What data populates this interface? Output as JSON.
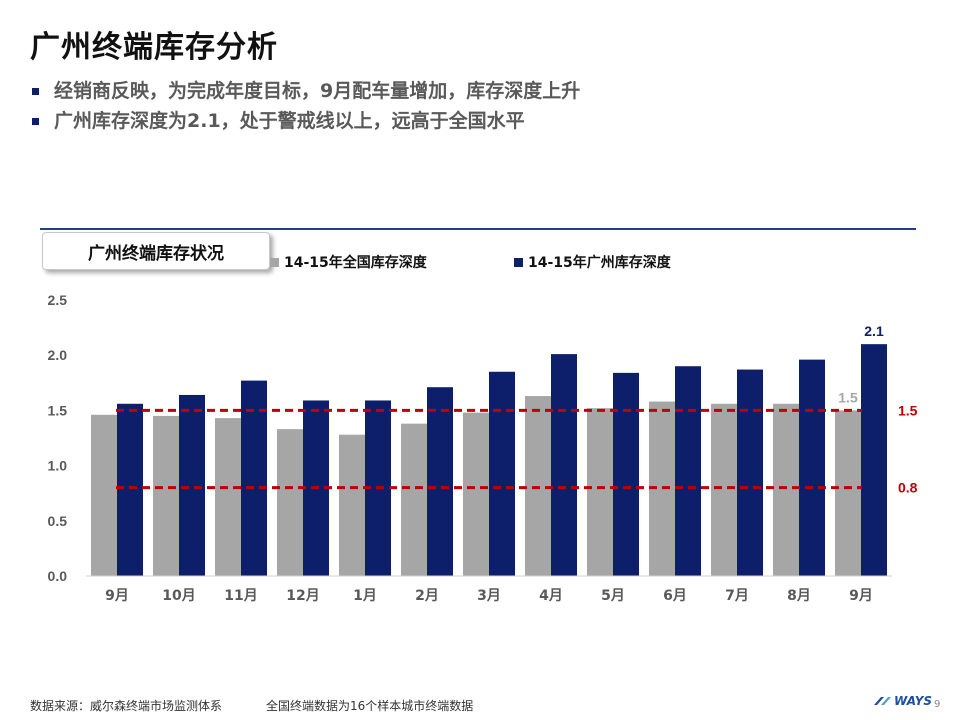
{
  "title": "广州终端库存分析",
  "bullets": [
    "经销商反映，为完成年度目标，9月配车量增加，库存深度上升",
    "广州库存深度为2.1，处于警戒线以上，远高于全国水平"
  ],
  "chart_box_title": "广州终端库存状况",
  "colors": {
    "national": "#a6a6a6",
    "guangzhou": "#0d1f6b",
    "threshold": "#c00000",
    "bullet": "#0d1f6b"
  },
  "chart_data": {
    "type": "bar",
    "title": "广州终端库存状况",
    "categories": [
      "9月",
      "10月",
      "11月",
      "12月",
      "1月",
      "2月",
      "3月",
      "4月",
      "5月",
      "6月",
      "7月",
      "8月",
      "9月"
    ],
    "series": [
      {
        "name": "14-15年全国库存深度",
        "values": [
          1.46,
          1.45,
          1.43,
          1.33,
          1.28,
          1.38,
          1.48,
          1.63,
          1.52,
          1.58,
          1.56,
          1.56,
          1.5
        ]
      },
      {
        "name": "14-15年广州库存深度",
        "values": [
          1.56,
          1.64,
          1.77,
          1.59,
          1.59,
          1.71,
          1.85,
          2.01,
          1.84,
          1.9,
          1.87,
          1.96,
          2.1
        ]
      }
    ],
    "data_labels": [
      {
        "series": 0,
        "index": 12,
        "text": "1.5"
      },
      {
        "series": 1,
        "index": 12,
        "text": "2.1"
      }
    ],
    "reference_lines": [
      {
        "value": 1.5,
        "label": "1.5"
      },
      {
        "value": 0.8,
        "label": "0.8"
      }
    ],
    "ylim": [
      0,
      2.5
    ],
    "yticks": [
      "0.0",
      "0.5",
      "1.0",
      "1.5",
      "2.0",
      "2.5"
    ],
    "grid": false,
    "legend": "top"
  },
  "footer": {
    "source": "数据来源：威尔森终端市场监测体系",
    "note": "全国终端数据为16个样本城市终端数据",
    "logo": "WAYS",
    "page": "9"
  }
}
